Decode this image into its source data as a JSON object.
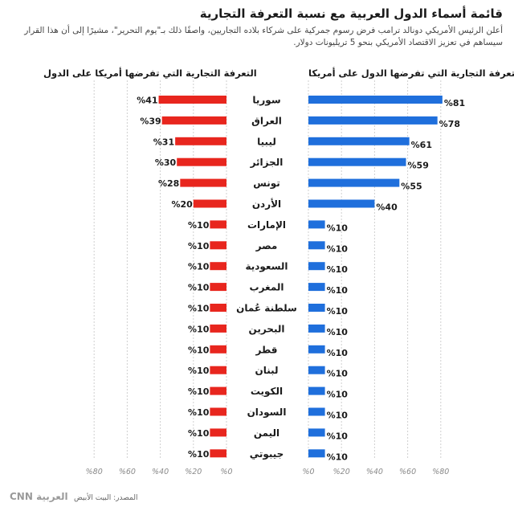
{
  "title": "قائمة أسماء الدول العربية مع نسبة التعرفة التجارية",
  "subtitle": "أعلن الرئيس الأمريكي دونالد ترامب فرض رسوم جمركية على شركاء بلاده التجاريين، واصفًا ذلك بـ\"يوم التحرير\"، مشيرًا إلى أن هذا القرار سيساهم في تعزيز الاقتصاد الأمريكي بنحو 5 تريليونات دولار.",
  "source": "المصدر: البيت الأبيض",
  "logo": "CNN العربية",
  "colors": {
    "blue": "#1f6fdc",
    "red": "#e8261e",
    "grid": "#cfcfcf"
  },
  "chart_data": {
    "type": "bar",
    "categories": [
      "سوريا",
      "العراق",
      "ليبيا",
      "الجزائر",
      "تونس",
      "الأردن",
      "الإمارات",
      "مصر",
      "السعودية",
      "المغرب",
      "سلطنة عُمان",
      "البحرين",
      "قطر",
      "لبنان",
      "الكويت",
      "السودان",
      "اليمن",
      "جيبوتي"
    ],
    "series": [
      {
        "name": "التعرفة التجارية التي تفرضها الدول على أمريكا",
        "values": [
          81,
          78,
          61,
          59,
          55,
          40,
          10,
          10,
          10,
          10,
          10,
          10,
          10,
          10,
          10,
          10,
          10,
          10
        ],
        "value_labels": [
          "%81",
          "%78",
          "%61",
          "%59",
          "%55",
          "%40",
          "%10",
          "%10",
          "%10",
          "%10",
          "%10",
          "%10",
          "%10",
          "%10",
          "%10",
          "%10",
          "%10",
          "%10"
        ],
        "axis_ticks": [
          "%0",
          "%20",
          "%40",
          "%60",
          "%80"
        ]
      },
      {
        "name": "التعرفة التجارية التي تفرضها أمريكا على الدول",
        "values": [
          41,
          39,
          31,
          30,
          28,
          20,
          10,
          10,
          10,
          10,
          10,
          10,
          10,
          10,
          10,
          10,
          10,
          10
        ],
        "value_labels": [
          "%41",
          "%39",
          "%31",
          "%30",
          "%28",
          "%20",
          "%10",
          "%10",
          "%10",
          "%10",
          "%10",
          "%10",
          "%10",
          "%10",
          "%10",
          "%10",
          "%10",
          "%10"
        ],
        "axis_ticks": [
          "%0",
          "%20",
          "%40",
          "%60",
          "%80"
        ]
      }
    ],
    "xlim": [
      0,
      90
    ]
  }
}
